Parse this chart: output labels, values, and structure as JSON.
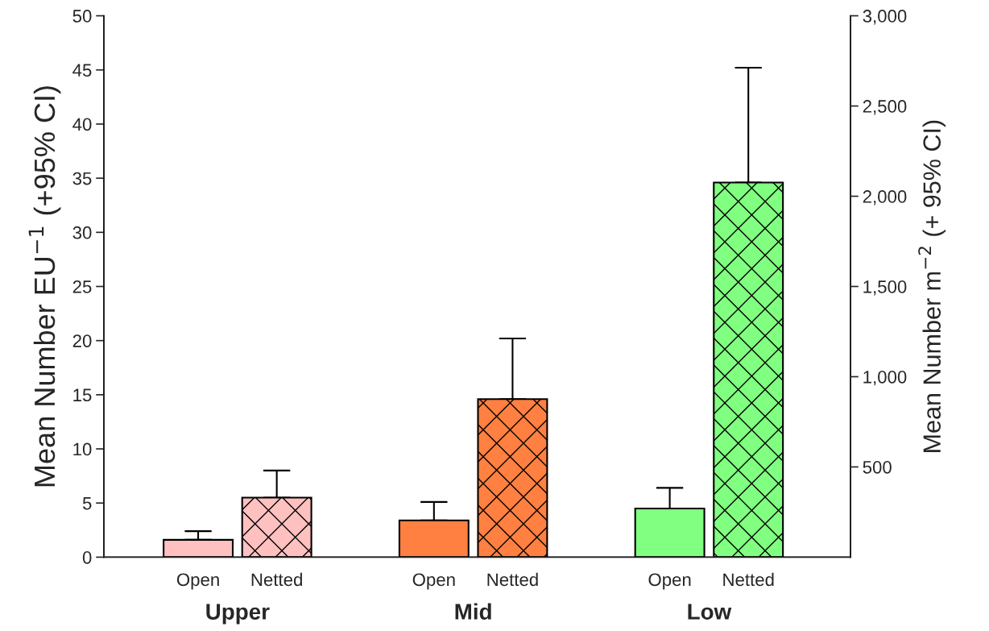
{
  "chart_data": {
    "type": "bar",
    "categories": [
      "Open",
      "Netted",
      "Open",
      "Netted",
      "Open",
      "Netted"
    ],
    "series": [
      {
        "colors": [
          "#ffc0c0",
          null,
          "#ff8040",
          null,
          "#80ff80",
          null
        ],
        "values": [
          1.6,
          null,
          3.4,
          null,
          4.5,
          null
        ],
        "errors": [
          [
            1.6,
            2.4
          ],
          null,
          [
            3.4,
            5.1
          ],
          null,
          [
            4.5,
            6.4
          ],
          null
        ]
      },
      {
        "colors": [
          null,
          "#ffc0c0",
          null,
          "#ff8040",
          null,
          "#80ff80"
        ],
        "values": [
          null,
          5.5,
          null,
          14.6,
          null,
          34.6
        ],
        "errors": [
          null,
          [
            5.5,
            8.0
          ],
          null,
          [
            14.6,
            20.2
          ],
          null,
          [
            34.6,
            45.2
          ]
        ]
      }
    ],
    "ylabel": "Mean Number EU$^{−1}$ (+95% CI)",
    "y2label": "Mean Number m$^{−2}$ (+ 95% CI)",
    "ylim": [
      0,
      50
    ],
    "yticks": [
      0,
      5,
      10,
      15,
      20,
      25,
      30,
      35,
      40,
      45,
      50
    ],
    "y2lim": [
      0,
      3000
    ],
    "y2ticks": [
      {
        "value": 500,
        "label": "500"
      },
      {
        "value": 1000,
        "label": "1,000"
      },
      {
        "value": 1500,
        "label": "1,500"
      },
      {
        "value": 2000,
        "label": "2,000"
      },
      {
        "value": 2500,
        "label": "2,500"
      },
      {
        "value": 3000,
        "label": "3,000"
      }
    ],
    "annotations": [
      "Upper",
      "Mid",
      "Low"
    ],
    "grid": false,
    "legend": false
  }
}
